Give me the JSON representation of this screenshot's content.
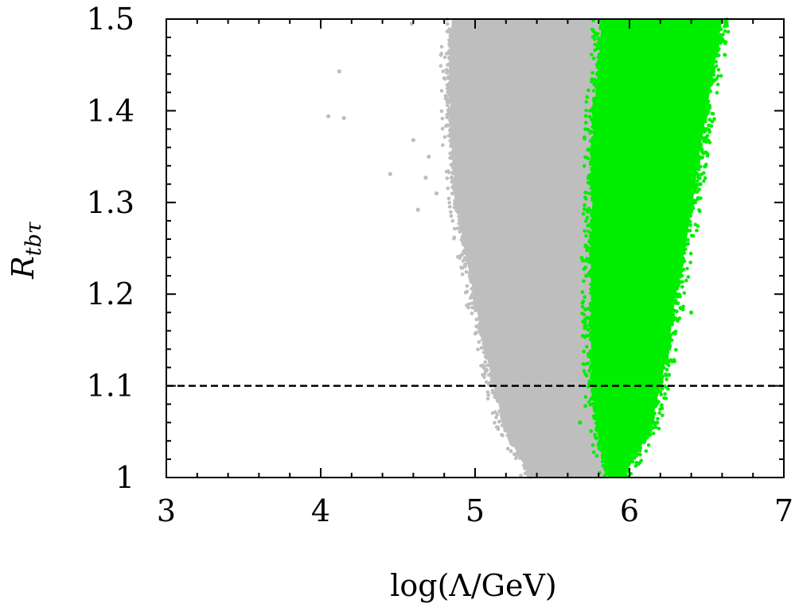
{
  "chart_data": {
    "type": "scatter",
    "title": "",
    "xlabel": "log(Λ/GeV)",
    "ylabel": {
      "main": "R",
      "subscript": "tbτ"
    },
    "xlim": [
      3,
      7
    ],
    "ylim": [
      1.0,
      1.5
    ],
    "x_ticks": [
      3,
      4,
      5,
      6,
      7
    ],
    "x_tick_labels": [
      "3",
      "4",
      "5",
      "6",
      "7"
    ],
    "y_ticks": [
      1.0,
      1.1,
      1.2,
      1.3,
      1.4,
      1.5
    ],
    "y_tick_labels": [
      "1",
      "1.1",
      "1.2",
      "1.3",
      "1.4",
      "1.5"
    ],
    "grid": false,
    "legend": "none",
    "reference_lines": [
      {
        "axis": "y",
        "value": 1.1,
        "style": "dashed",
        "color": "#000000"
      }
    ],
    "series": [
      {
        "color": "#bebebe",
        "region_bounds": [
          {
            "y": 1.0,
            "x_min": 5.36,
            "x_max": 5.86
          },
          {
            "y": 1.05,
            "x_min": 5.2,
            "x_max": 5.8
          },
          {
            "y": 1.1,
            "x_min": 5.12,
            "x_max": 5.76
          },
          {
            "y": 1.15,
            "x_min": 5.05,
            "x_max": 5.75
          },
          {
            "y": 1.2,
            "x_min": 4.99,
            "x_max": 5.75
          },
          {
            "y": 1.25,
            "x_min": 4.93,
            "x_max": 5.75
          },
          {
            "y": 1.3,
            "x_min": 4.88,
            "x_max": 5.76
          },
          {
            "y": 1.35,
            "x_min": 4.85,
            "x_max": 5.76
          },
          {
            "y": 1.4,
            "x_min": 4.84,
            "x_max": 5.77
          },
          {
            "y": 1.45,
            "x_min": 4.83,
            "x_max": 5.8
          },
          {
            "y": 1.5,
            "x_min": 4.85,
            "x_max": 5.82
          }
        ],
        "outliers": [
          {
            "x": 4.12,
            "y": 1.443
          },
          {
            "x": 4.05,
            "y": 1.394
          },
          {
            "x": 4.15,
            "y": 1.392
          },
          {
            "x": 4.45,
            "y": 1.331
          },
          {
            "x": 4.63,
            "y": 1.292
          },
          {
            "x": 4.59,
            "y": 1.495
          },
          {
            "x": 4.6,
            "y": 1.368
          },
          {
            "x": 4.7,
            "y": 1.35
          },
          {
            "x": 4.68,
            "y": 1.327
          },
          {
            "x": 4.75,
            "y": 1.31
          }
        ]
      },
      {
        "color": "#00ee00",
        "region_bounds": [
          {
            "y": 1.0,
            "x_min": 5.86,
            "x_max": 5.96
          },
          {
            "y": 1.05,
            "x_min": 5.79,
            "x_max": 6.13
          },
          {
            "y": 1.1,
            "x_min": 5.76,
            "x_max": 6.2
          },
          {
            "y": 1.15,
            "x_min": 5.75,
            "x_max": 6.26
          },
          {
            "y": 1.2,
            "x_min": 5.75,
            "x_max": 6.3
          },
          {
            "y": 1.25,
            "x_min": 5.75,
            "x_max": 6.36
          },
          {
            "y": 1.3,
            "x_min": 5.76,
            "x_max": 6.41
          },
          {
            "y": 1.35,
            "x_min": 5.76,
            "x_max": 6.45
          },
          {
            "y": 1.4,
            "x_min": 5.77,
            "x_max": 6.5
          },
          {
            "y": 1.45,
            "x_min": 5.8,
            "x_max": 6.55
          },
          {
            "y": 1.5,
            "x_min": 5.82,
            "x_max": 6.6
          }
        ],
        "outliers": [
          {
            "x": 5.68,
            "y": 1.06
          },
          {
            "x": 5.7,
            "y": 1.17
          },
          {
            "x": 5.72,
            "y": 1.22
          },
          {
            "x": 5.73,
            "y": 1.29
          },
          {
            "x": 5.79,
            "y": 1.45
          },
          {
            "x": 6.48,
            "y": 1.37
          },
          {
            "x": 6.5,
            "y": 1.38
          },
          {
            "x": 6.55,
            "y": 1.46
          },
          {
            "x": 6.46,
            "y": 1.32
          },
          {
            "x": 6.4,
            "y": 1.18
          },
          {
            "x": 6.18,
            "y": 1.06
          }
        ]
      }
    ]
  }
}
